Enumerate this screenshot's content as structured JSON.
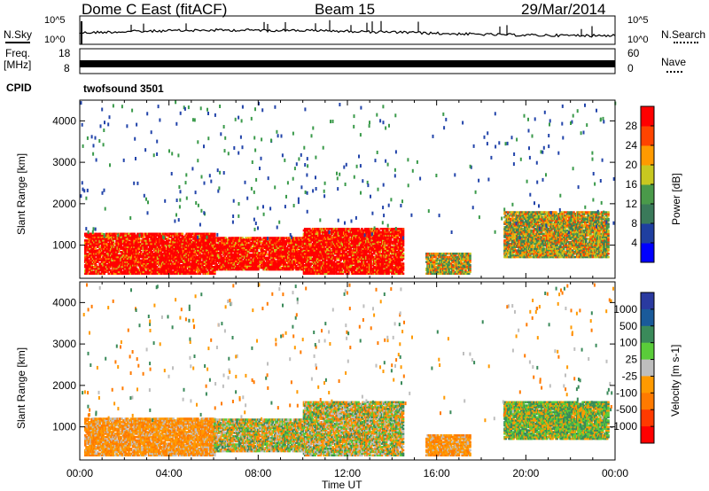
{
  "header": {
    "station": "Dome C East (fitACF)",
    "beam": "Beam 15",
    "date": "29/Mar/2014"
  },
  "aux": {
    "nsky_label": "N.Sky",
    "nsearch_label": "N.Search",
    "freq_label": "Freq.",
    "freq_unit": "[MHz]",
    "nave_label": "Nave",
    "cpid_label": "CPID",
    "cpid_value": "twofsound 3501",
    "noise_ticks_left": [
      "10^5",
      "10^0"
    ],
    "noise_ticks_right": [
      "10^5",
      "10^0"
    ],
    "freq_ticks": [
      "18",
      "8"
    ],
    "nave_ticks": [
      "60",
      "0"
    ]
  },
  "colors": {
    "power_scale": [
      "#0000ff",
      "#1f3fa0",
      "#3a7a5a",
      "#4a9a4a",
      "#c8c820",
      "#ff9a00",
      "#ff4400",
      "#ff0000"
    ],
    "velocity_scale": [
      "#2a3aa0",
      "#1a5a9a",
      "#3a8a5a",
      "#5acc3a",
      "#bebebe",
      "#ff9a00",
      "#ff7a00",
      "#ff3a00",
      "#ff0000"
    ],
    "scatter_green": "#3a9a4a",
    "scatter_blue": "#2244aa"
  },
  "chart_data": [
    {
      "type": "heatmap",
      "panel": "power",
      "ylabel": "Slant Range [km]",
      "xlabel": "",
      "ylim": [
        200,
        4500
      ],
      "yticks": [
        "1000",
        "2000",
        "3000",
        "4000"
      ],
      "xlim": [
        "00:00",
        "24:00"
      ],
      "colorbar": {
        "label": "Power [dB]",
        "ticks": [
          "4",
          "8",
          "12",
          "16",
          "20",
          "24",
          "28"
        ],
        "range": [
          0,
          30
        ]
      },
      "echo_regions": [
        {
          "t0": 0.2,
          "t1": 6.0,
          "r0": 300,
          "r1": 1300,
          "level": "strong"
        },
        {
          "t0": 6.0,
          "t1": 10.0,
          "r0": 400,
          "r1": 1200,
          "level": "strong"
        },
        {
          "t0": 10.0,
          "t1": 14.5,
          "r0": 300,
          "r1": 1400,
          "level": "strong"
        },
        {
          "t0": 15.5,
          "t1": 17.5,
          "r0": 300,
          "r1": 800,
          "level": "moderate"
        },
        {
          "t0": 19.0,
          "t1": 23.7,
          "r0": 700,
          "r1": 1800,
          "level": "moderate"
        }
      ]
    },
    {
      "type": "heatmap",
      "panel": "velocity",
      "ylabel": "Slant Range [km]",
      "xlabel": "Time UT",
      "ylim": [
        200,
        4500
      ],
      "yticks": [
        "1000",
        "2000",
        "3000",
        "4000"
      ],
      "xticks": [
        "00:00",
        "04:00",
        "08:00",
        "12:00",
        "16:00",
        "20:00",
        "00:00"
      ],
      "xlim": [
        "00:00",
        "24:00"
      ],
      "colorbar": {
        "label": "Velocity [m s-1]",
        "ticks": [
          "1000",
          "500",
          "100",
          "25",
          "-25",
          "-100",
          "-500",
          "-1000"
        ]
      },
      "echo_regions": [
        {
          "t0": 0.2,
          "t1": 6.0,
          "r0": 300,
          "r1": 1200,
          "level": "away"
        },
        {
          "t0": 6.0,
          "t1": 10.0,
          "r0": 400,
          "r1": 1200,
          "level": "mixed"
        },
        {
          "t0": 10.0,
          "t1": 14.5,
          "r0": 300,
          "r1": 1600,
          "level": "mixed"
        },
        {
          "t0": 15.5,
          "t1": 17.5,
          "r0": 300,
          "r1": 800,
          "level": "away"
        },
        {
          "t0": 19.0,
          "t1": 23.7,
          "r0": 700,
          "r1": 1600,
          "level": "toward"
        }
      ]
    }
  ]
}
